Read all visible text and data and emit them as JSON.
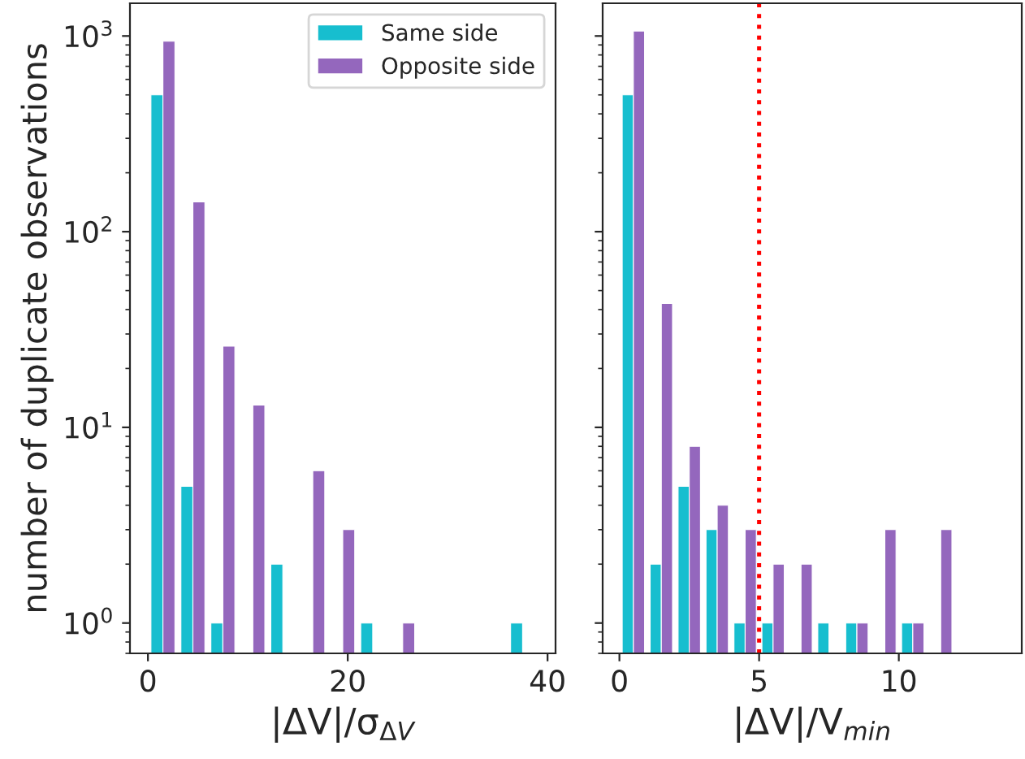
{
  "chart_data": [
    {
      "type": "histogram",
      "xlabel": "|ΔV|/σ$_{ΔV}$",
      "ylabel": "number of duplicate observations",
      "bins": [
        0,
        3,
        6,
        9,
        12,
        15,
        18,
        21,
        24,
        27,
        30,
        33,
        36,
        39
      ],
      "series": [
        {
          "name": "Same side",
          "color": "#17becf",
          "values": [
            500,
            5,
            1,
            null,
            2,
            null,
            null,
            1,
            null,
            null,
            null,
            null,
            1
          ]
        },
        {
          "name": "Opposite side",
          "color": "#9467bd",
          "values": [
            940,
            142,
            26,
            13,
            null,
            6,
            3,
            null,
            1,
            null,
            null,
            null,
            null
          ]
        }
      ],
      "log": true,
      "xlim": [
        -1.8,
        40.8
      ],
      "xticks": [
        0,
        20,
        40
      ],
      "ylim": [
        0.7,
        1470
      ],
      "yticks": [
        {
          "value": 1,
          "label": "10$^{0}$"
        },
        {
          "value": 10,
          "label": "10$^{1}$"
        },
        {
          "value": 100,
          "label": "10$^{2}$"
        },
        {
          "value": 1000,
          "label": "10$^{3}$"
        }
      ],
      "legend": "top right",
      "grid": false
    },
    {
      "type": "histogram",
      "xlabel": "|ΔV|/V$_{min}$",
      "bins": [
        0,
        1,
        2,
        3,
        4,
        5,
        6,
        7,
        8,
        9,
        10,
        11,
        12
      ],
      "series": [
        {
          "color": "#17becf",
          "values": [
            500,
            2,
            5,
            3,
            1,
            1,
            null,
            1,
            1,
            null,
            1,
            null
          ]
        },
        {
          "color": "#9467bd",
          "values": [
            1060,
            43,
            8,
            4,
            3,
            2,
            2,
            null,
            1,
            3,
            1,
            3
          ]
        }
      ],
      "log": true,
      "xlim": [
        -0.6,
        14.4
      ],
      "xticks": [
        0,
        5,
        10
      ],
      "ylim": [
        0.7,
        1470
      ],
      "yticks": [
        {
          "value": 1,
          "label": null
        },
        {
          "value": 10,
          "label": null
        },
        {
          "value": 100,
          "label": null
        },
        {
          "value": 1000,
          "label": null
        }
      ],
      "tick_labels": "x",
      "ref_lines": [
        {
          "axis": "x",
          "value": 5,
          "color": "#ff0000",
          "line_style": "dotted"
        }
      ],
      "grid": false
    }
  ]
}
